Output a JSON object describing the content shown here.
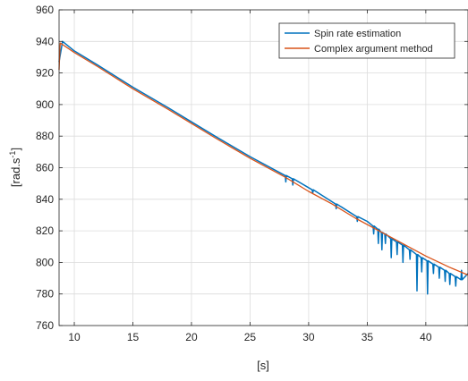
{
  "chart_data": {
    "type": "line",
    "xlabel": "[s]",
    "ylabel_main": "[rad.s",
    "ylabel_sup": "-1",
    "ylabel_close": "]",
    "xlim": [
      8.7,
      43.6
    ],
    "ylim": [
      760,
      960
    ],
    "x_ticks": [
      10,
      15,
      20,
      25,
      30,
      35,
      40
    ],
    "y_ticks": [
      760,
      780,
      800,
      820,
      840,
      860,
      880,
      900,
      920,
      940,
      960
    ],
    "grid": true,
    "legend_position": "top-right",
    "colors": {
      "spin": "#0072BD",
      "complex": "#D95319",
      "grid": "#DCDCDC",
      "axis": "#262626"
    },
    "series": [
      {
        "name": "Spin rate estimation",
        "x": [
          8.7,
          9.0,
          10.0,
          12.0,
          15.0,
          18.0,
          20.0,
          22.0,
          25.0,
          27.5,
          28.0,
          28.05,
          28.1,
          28.6,
          28.65,
          28.7,
          30.3,
          30.35,
          30.4,
          32.3,
          32.35,
          32.4,
          34.1,
          34.15,
          34.2,
          35.0,
          35.5,
          35.55,
          35.6,
          35.9,
          35.95,
          36.0,
          36.2,
          36.25,
          36.3,
          36.5,
          36.55,
          36.6,
          37.0,
          37.05,
          37.1,
          37.5,
          37.55,
          37.6,
          38.0,
          38.05,
          38.1,
          38.6,
          38.65,
          38.7,
          39.2,
          39.25,
          39.3,
          39.6,
          39.65,
          39.7,
          40.1,
          40.15,
          40.2,
          40.6,
          40.65,
          40.7,
          41.1,
          41.15,
          41.2,
          41.6,
          41.65,
          41.7,
          42.0,
          42.05,
          42.1,
          42.5,
          42.55,
          42.6,
          43.0,
          43.05,
          43.1,
          43.6
        ],
        "y": [
          927,
          940,
          934,
          925,
          911,
          898,
          889,
          880,
          867,
          857,
          855,
          851,
          855,
          853,
          849,
          853,
          846,
          844,
          846,
          837,
          834,
          837,
          829,
          826,
          829,
          826,
          823,
          818,
          823,
          821,
          812,
          821,
          819,
          808,
          819,
          818,
          812,
          818,
          815,
          803,
          815,
          813,
          805,
          813,
          811,
          800,
          811,
          808,
          802,
          808,
          805,
          782,
          805,
          803,
          794,
          803,
          801,
          780,
          801,
          799,
          793,
          799,
          797,
          790,
          797,
          795,
          788,
          795,
          793,
          786,
          793,
          791,
          785,
          791,
          789,
          795,
          789,
          793
        ]
      },
      {
        "name": "Complex argument method",
        "x": [
          8.7,
          8.75,
          8.8,
          9.0,
          10.0,
          12.0,
          15.0,
          18.0,
          20.0,
          22.0,
          25.0,
          28.0,
          30.0,
          32.0,
          34.0,
          36.0,
          38.0,
          40.0,
          42.0,
          43.6
        ],
        "y": [
          922,
          932,
          939,
          938,
          933,
          924,
          910,
          897,
          888,
          879,
          866,
          854,
          845,
          837,
          828,
          820,
          812,
          804,
          797,
          792
        ]
      }
    ]
  }
}
